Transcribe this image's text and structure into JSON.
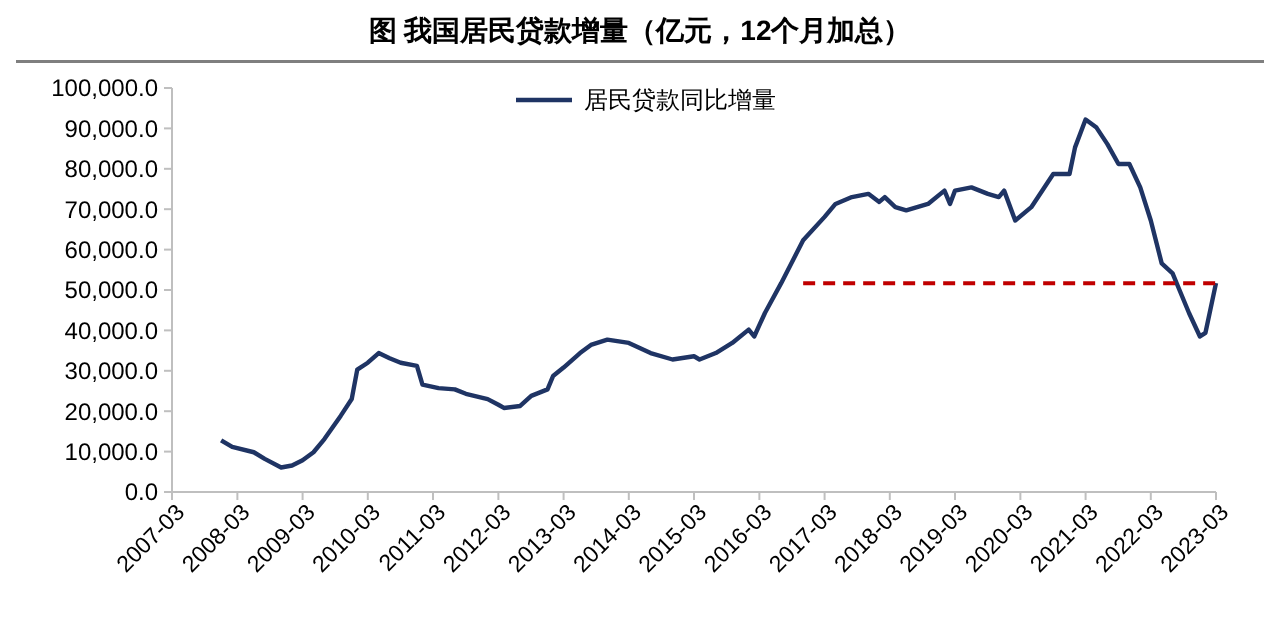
{
  "chart_data": {
    "type": "line",
    "title": "图  我国居民贷款增量（亿元，12个月加总）",
    "xlim": [
      "2007-03",
      "2023-03"
    ],
    "xticks": [
      "2007-03",
      "2008-03",
      "2009-03",
      "2010-03",
      "2011-03",
      "2012-03",
      "2013-03",
      "2014-03",
      "2015-03",
      "2016-03",
      "2017-03",
      "2018-03",
      "2019-03",
      "2020-03",
      "2021-03",
      "2022-03",
      "2023-03"
    ],
    "ylim": [
      0,
      100000
    ],
    "yticks": [
      {
        "value": 0,
        "label": "0.0"
      },
      {
        "value": 10000,
        "label": "10,000.0"
      },
      {
        "value": 20000,
        "label": "20,000.0"
      },
      {
        "value": 30000,
        "label": "30,000.0"
      },
      {
        "value": 40000,
        "label": "40,000.0"
      },
      {
        "value": 50000,
        "label": "50,000.0"
      },
      {
        "value": 60000,
        "label": "60,000.0"
      },
      {
        "value": 70000,
        "label": "70,000.0"
      },
      {
        "value": 80000,
        "label": "80,000.0"
      },
      {
        "value": 90000,
        "label": "90,000.0"
      },
      {
        "value": 100000,
        "label": "100,000.0"
      }
    ],
    "grid": false,
    "legend": "top right",
    "marker": "none",
    "series": [
      {
        "name": "居民贷款同比增量",
        "color": "#1f3464",
        "line_style": "solid",
        "x": [
          "2007-12",
          "2008-02",
          "2008-06",
          "2008-08",
          "2008-11",
          "2009-01",
          "2009-03",
          "2009-05",
          "2009-07",
          "2009-10",
          "2009-12",
          "2010-01",
          "2010-03",
          "2010-05",
          "2010-07",
          "2010-09",
          "2010-12",
          "2011-01",
          "2011-04",
          "2011-07",
          "2011-09",
          "2012-01",
          "2012-03",
          "2012-04",
          "2012-07",
          "2012-09",
          "2012-12",
          "2013-01",
          "2013-03",
          "2013-06",
          "2013-08",
          "2013-11",
          "2014-03",
          "2014-07",
          "2014-11",
          "2015-03",
          "2015-04",
          "2015-07",
          "2015-10",
          "2016-01",
          "2016-02",
          "2016-04",
          "2016-07",
          "2016-11",
          "2017-03",
          "2017-05",
          "2017-08",
          "2017-11",
          "2018-01",
          "2018-02",
          "2018-04",
          "2018-06",
          "2018-10",
          "2019-01",
          "2019-02",
          "2019-03",
          "2019-06",
          "2019-09",
          "2019-11",
          "2019-12",
          "2020-02",
          "2020-05",
          "2020-09",
          "2020-12",
          "2021-01",
          "2021-03",
          "2021-05",
          "2021-07",
          "2021-09",
          "2021-11",
          "2022-01",
          "2022-03",
          "2022-05",
          "2022-07",
          "2022-08",
          "2022-10",
          "2022-12",
          "2023-01",
          "2023-03"
        ],
        "values": [
          12800,
          11150,
          9840,
          8200,
          6070,
          6560,
          7870,
          9840,
          13100,
          18900,
          23000,
          30300,
          32000,
          34400,
          33100,
          32000,
          31200,
          26600,
          25700,
          25400,
          24300,
          23000,
          21600,
          20800,
          21300,
          23800,
          25400,
          28700,
          30800,
          34400,
          36400,
          37700,
          36900,
          34400,
          32800,
          33600,
          32800,
          34400,
          36900,
          40200,
          38500,
          44300,
          51700,
          62300,
          68100,
          71300,
          73000,
          73800,
          71800,
          73000,
          70500,
          69700,
          71300,
          74600,
          71300,
          74600,
          75400,
          73800,
          73000,
          74600,
          67200,
          70500,
          78700,
          78700,
          85300,
          92200,
          90200,
          86100,
          81200,
          81200,
          75400,
          67200,
          56600,
          54100,
          50800,
          44300,
          38500,
          39400,
          51700
        ]
      },
      {
        "type": "line",
        "color": "#c00000",
        "line_style": "dashed",
        "x": [
          "2016-11",
          "2023-03"
        ],
        "values": [
          51700,
          51700
        ]
      }
    ]
  }
}
